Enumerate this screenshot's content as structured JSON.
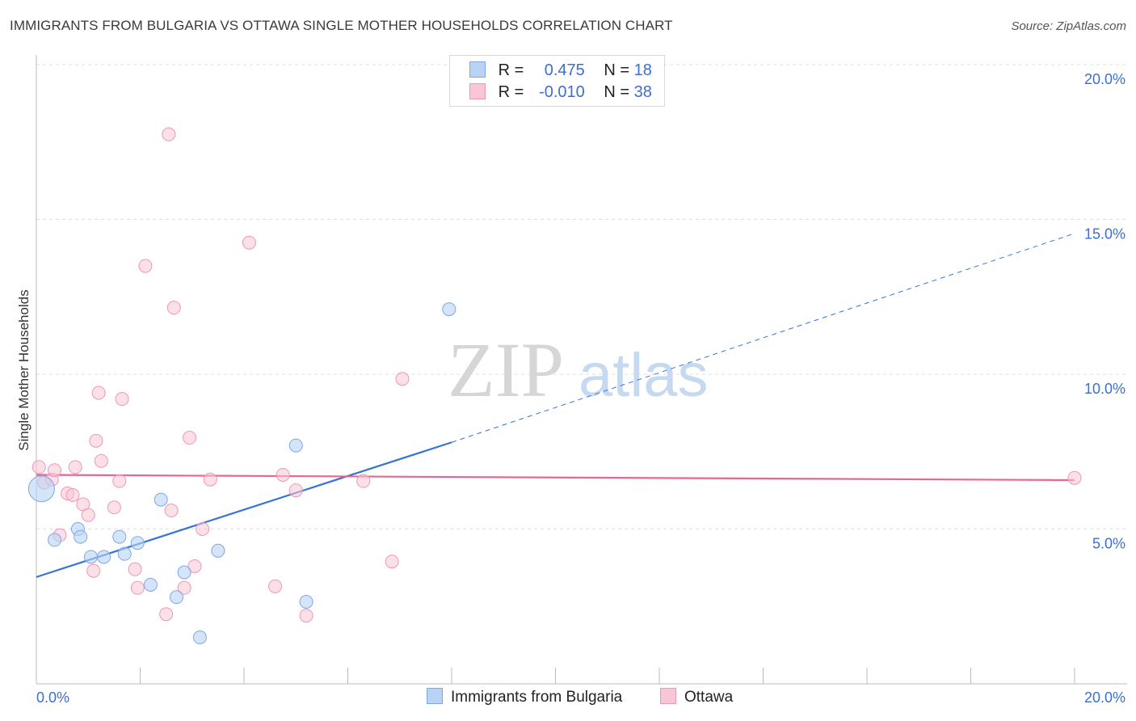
{
  "title": "IMMIGRANTS FROM BULGARIA VS OTTAWA SINGLE MOTHER HOUSEHOLDS CORRELATION CHART",
  "source": "Source: ZipAtlas.com",
  "watermark": {
    "part1": "ZIP",
    "part2": "atlas"
  },
  "legend": {
    "r_label": "R =",
    "n_label": "N =",
    "series1": {
      "r": "0.475",
      "n": "18"
    },
    "series2": {
      "r": "-0.010",
      "n": "38"
    }
  },
  "bottom_legend": {
    "series1": "Immigrants from Bulgaria",
    "series2": "Ottawa"
  },
  "colors": {
    "blue_fill": "#b9d3f5",
    "blue_stroke": "#7fa7e3",
    "blue_line": "#3674d6",
    "pink_fill": "#f8c6d6",
    "pink_stroke": "#ee97b3",
    "pink_line": "#e8668f",
    "tick_label": "#3b6fd0"
  },
  "chart_data": {
    "type": "scatter",
    "title": "IMMIGRANTS FROM BULGARIA VS OTTAWA SINGLE MOTHER HOUSEHOLDS CORRELATION CHART",
    "xlabel": "",
    "ylabel": "Single Mother Households",
    "xlim": [
      0,
      20
    ],
    "ylim": [
      0,
      20
    ],
    "x_tick_labels": [
      {
        "value": 0,
        "label": "0.0%"
      },
      {
        "value": 20,
        "label": "20.0%"
      }
    ],
    "y_tick_labels": [
      {
        "value": 5,
        "label": "5.0%"
      },
      {
        "value": 10,
        "label": "10.0%"
      },
      {
        "value": 15,
        "label": "15.0%"
      },
      {
        "value": 20,
        "label": "20.0%"
      }
    ],
    "grid": true,
    "legend_position": "top-center",
    "series": [
      {
        "name": "Immigrants from Bulgaria",
        "color": "#b9d3f5",
        "points": [
          {
            "x": 0.1,
            "y": 6.3,
            "size": "large"
          },
          {
            "x": 0.35,
            "y": 4.65
          },
          {
            "x": 0.8,
            "y": 5.0
          },
          {
            "x": 0.85,
            "y": 4.75
          },
          {
            "x": 1.05,
            "y": 4.1
          },
          {
            "x": 1.3,
            "y": 4.1
          },
          {
            "x": 1.6,
            "y": 4.75
          },
          {
            "x": 1.7,
            "y": 4.2
          },
          {
            "x": 1.95,
            "y": 4.55
          },
          {
            "x": 2.2,
            "y": 3.2
          },
          {
            "x": 2.4,
            "y": 5.95
          },
          {
            "x": 2.7,
            "y": 2.8
          },
          {
            "x": 2.85,
            "y": 3.6
          },
          {
            "x": 3.15,
            "y": 1.5
          },
          {
            "x": 3.5,
            "y": 4.3
          },
          {
            "x": 5.0,
            "y": 7.7
          },
          {
            "x": 5.2,
            "y": 2.65
          },
          {
            "x": 7.95,
            "y": 12.1
          }
        ],
        "trend": {
          "x1": 0,
          "y1": 3.45,
          "x2": 8.0,
          "y2": 7.8,
          "dashed_to_x": 20,
          "dashed_to_y": 14.55
        }
      },
      {
        "name": "Ottawa",
        "color": "#f8c6d6",
        "points": [
          {
            "x": 0.05,
            "y": 7.0
          },
          {
            "x": 0.15,
            "y": 6.5
          },
          {
            "x": 0.3,
            "y": 6.6
          },
          {
            "x": 0.35,
            "y": 6.9
          },
          {
            "x": 0.45,
            "y": 4.8
          },
          {
            "x": 0.6,
            "y": 6.15
          },
          {
            "x": 0.7,
            "y": 6.1
          },
          {
            "x": 0.75,
            "y": 7.0
          },
          {
            "x": 0.9,
            "y": 5.8
          },
          {
            "x": 1.0,
            "y": 5.45
          },
          {
            "x": 1.1,
            "y": 3.65
          },
          {
            "x": 1.15,
            "y": 7.85
          },
          {
            "x": 1.2,
            "y": 9.4
          },
          {
            "x": 1.25,
            "y": 7.2
          },
          {
            "x": 1.5,
            "y": 5.7
          },
          {
            "x": 1.6,
            "y": 6.55
          },
          {
            "x": 1.65,
            "y": 9.2
          },
          {
            "x": 1.9,
            "y": 3.7
          },
          {
            "x": 1.95,
            "y": 3.1
          },
          {
            "x": 2.1,
            "y": 13.5
          },
          {
            "x": 2.5,
            "y": 2.25
          },
          {
            "x": 2.55,
            "y": 17.75
          },
          {
            "x": 2.6,
            "y": 5.6
          },
          {
            "x": 2.65,
            "y": 12.15
          },
          {
            "x": 2.85,
            "y": 3.1
          },
          {
            "x": 2.95,
            "y": 7.95
          },
          {
            "x": 3.05,
            "y": 3.8
          },
          {
            "x": 3.2,
            "y": 5.0
          },
          {
            "x": 3.35,
            "y": 6.6
          },
          {
            "x": 4.1,
            "y": 14.25
          },
          {
            "x": 4.6,
            "y": 3.15
          },
          {
            "x": 4.75,
            "y": 6.75
          },
          {
            "x": 5.0,
            "y": 6.25
          },
          {
            "x": 5.2,
            "y": 2.2
          },
          {
            "x": 6.3,
            "y": 6.55
          },
          {
            "x": 6.85,
            "y": 3.95
          },
          {
            "x": 7.05,
            "y": 9.85
          },
          {
            "x": 20.0,
            "y": 6.65
          }
        ],
        "trend": {
          "x1": 0,
          "y1": 6.75,
          "x2": 20,
          "y2": 6.58
        }
      }
    ]
  }
}
